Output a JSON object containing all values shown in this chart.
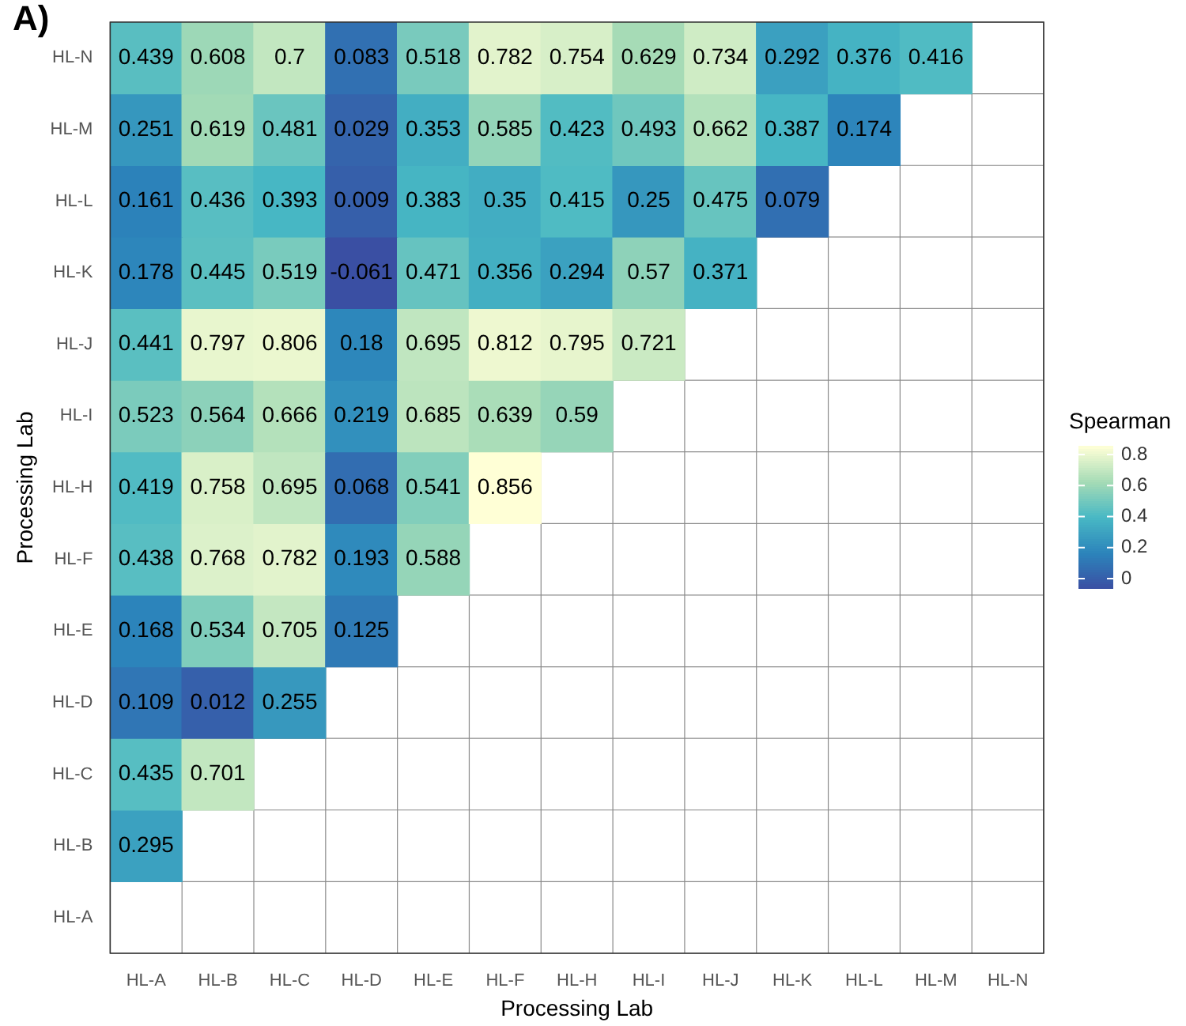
{
  "chart_data": {
    "type": "heatmap",
    "title": "A)",
    "xlabel": "Processing Lab",
    "ylabel": "Processing Lab",
    "clabel": "Spearman",
    "categories": [
      "HL-A",
      "HL-B",
      "HL-C",
      "HL-D",
      "HL-E",
      "HL-F",
      "HL-H",
      "HL-I",
      "HL-J",
      "HL-K",
      "HL-L",
      "HL-M",
      "HL-N"
    ],
    "y_categories": [
      "HL-N",
      "HL-M",
      "HL-L",
      "HL-K",
      "HL-J",
      "HL-I",
      "HL-H",
      "HL-F",
      "HL-E",
      "HL-D",
      "HL-C",
      "HL-B",
      "HL-A"
    ],
    "cells": [
      [
        0.439,
        0.608,
        0.7,
        0.083,
        0.518,
        0.782,
        0.754,
        0.629,
        0.734,
        0.292,
        0.376,
        0.416,
        null
      ],
      [
        0.251,
        0.619,
        0.481,
        0.029,
        0.353,
        0.585,
        0.423,
        0.493,
        0.662,
        0.387,
        0.174,
        null,
        null
      ],
      [
        0.161,
        0.436,
        0.393,
        0.009,
        0.383,
        0.35,
        0.415,
        0.25,
        0.475,
        0.079,
        null,
        null,
        null
      ],
      [
        0.178,
        0.445,
        0.519,
        -0.061,
        0.471,
        0.356,
        0.294,
        0.57,
        0.371,
        null,
        null,
        null,
        null
      ],
      [
        0.441,
        0.797,
        0.806,
        0.18,
        0.695,
        0.812,
        0.795,
        0.721,
        null,
        null,
        null,
        null,
        null
      ],
      [
        0.523,
        0.564,
        0.666,
        0.219,
        0.685,
        0.639,
        0.59,
        null,
        null,
        null,
        null,
        null,
        null
      ],
      [
        0.419,
        0.758,
        0.695,
        0.068,
        0.541,
        0.856,
        null,
        null,
        null,
        null,
        null,
        null,
        null
      ],
      [
        0.438,
        0.768,
        0.782,
        0.193,
        0.588,
        null,
        null,
        null,
        null,
        null,
        null,
        null,
        null
      ],
      [
        0.168,
        0.534,
        0.705,
        0.125,
        null,
        null,
        null,
        null,
        null,
        null,
        null,
        null,
        null
      ],
      [
        0.109,
        0.012,
        0.255,
        null,
        null,
        null,
        null,
        null,
        null,
        null,
        null,
        null,
        null
      ],
      [
        0.435,
        0.701,
        null,
        null,
        null,
        null,
        null,
        null,
        null,
        null,
        null,
        null,
        null
      ],
      [
        0.295,
        null,
        null,
        null,
        null,
        null,
        null,
        null,
        null,
        null,
        null,
        null,
        null
      ],
      [
        null,
        null,
        null,
        null,
        null,
        null,
        null,
        null,
        null,
        null,
        null,
        null,
        null
      ]
    ],
    "clim": [
      -0.061,
      0.856
    ],
    "cticks": [
      0,
      0.2,
      0.4,
      0.6,
      0.8
    ],
    "data_labels": true,
    "grid": true
  }
}
